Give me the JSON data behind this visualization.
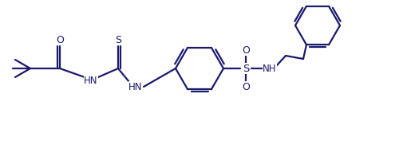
{
  "bg_color": "#ffffff",
  "line_color": "#1a1a6e",
  "line_width": 1.6,
  "font_size": 8.5,
  "fig_width": 5.05,
  "fig_height": 1.91,
  "dpi": 100,
  "xlim": [
    0,
    505
  ],
  "ylim": [
    0,
    191
  ]
}
